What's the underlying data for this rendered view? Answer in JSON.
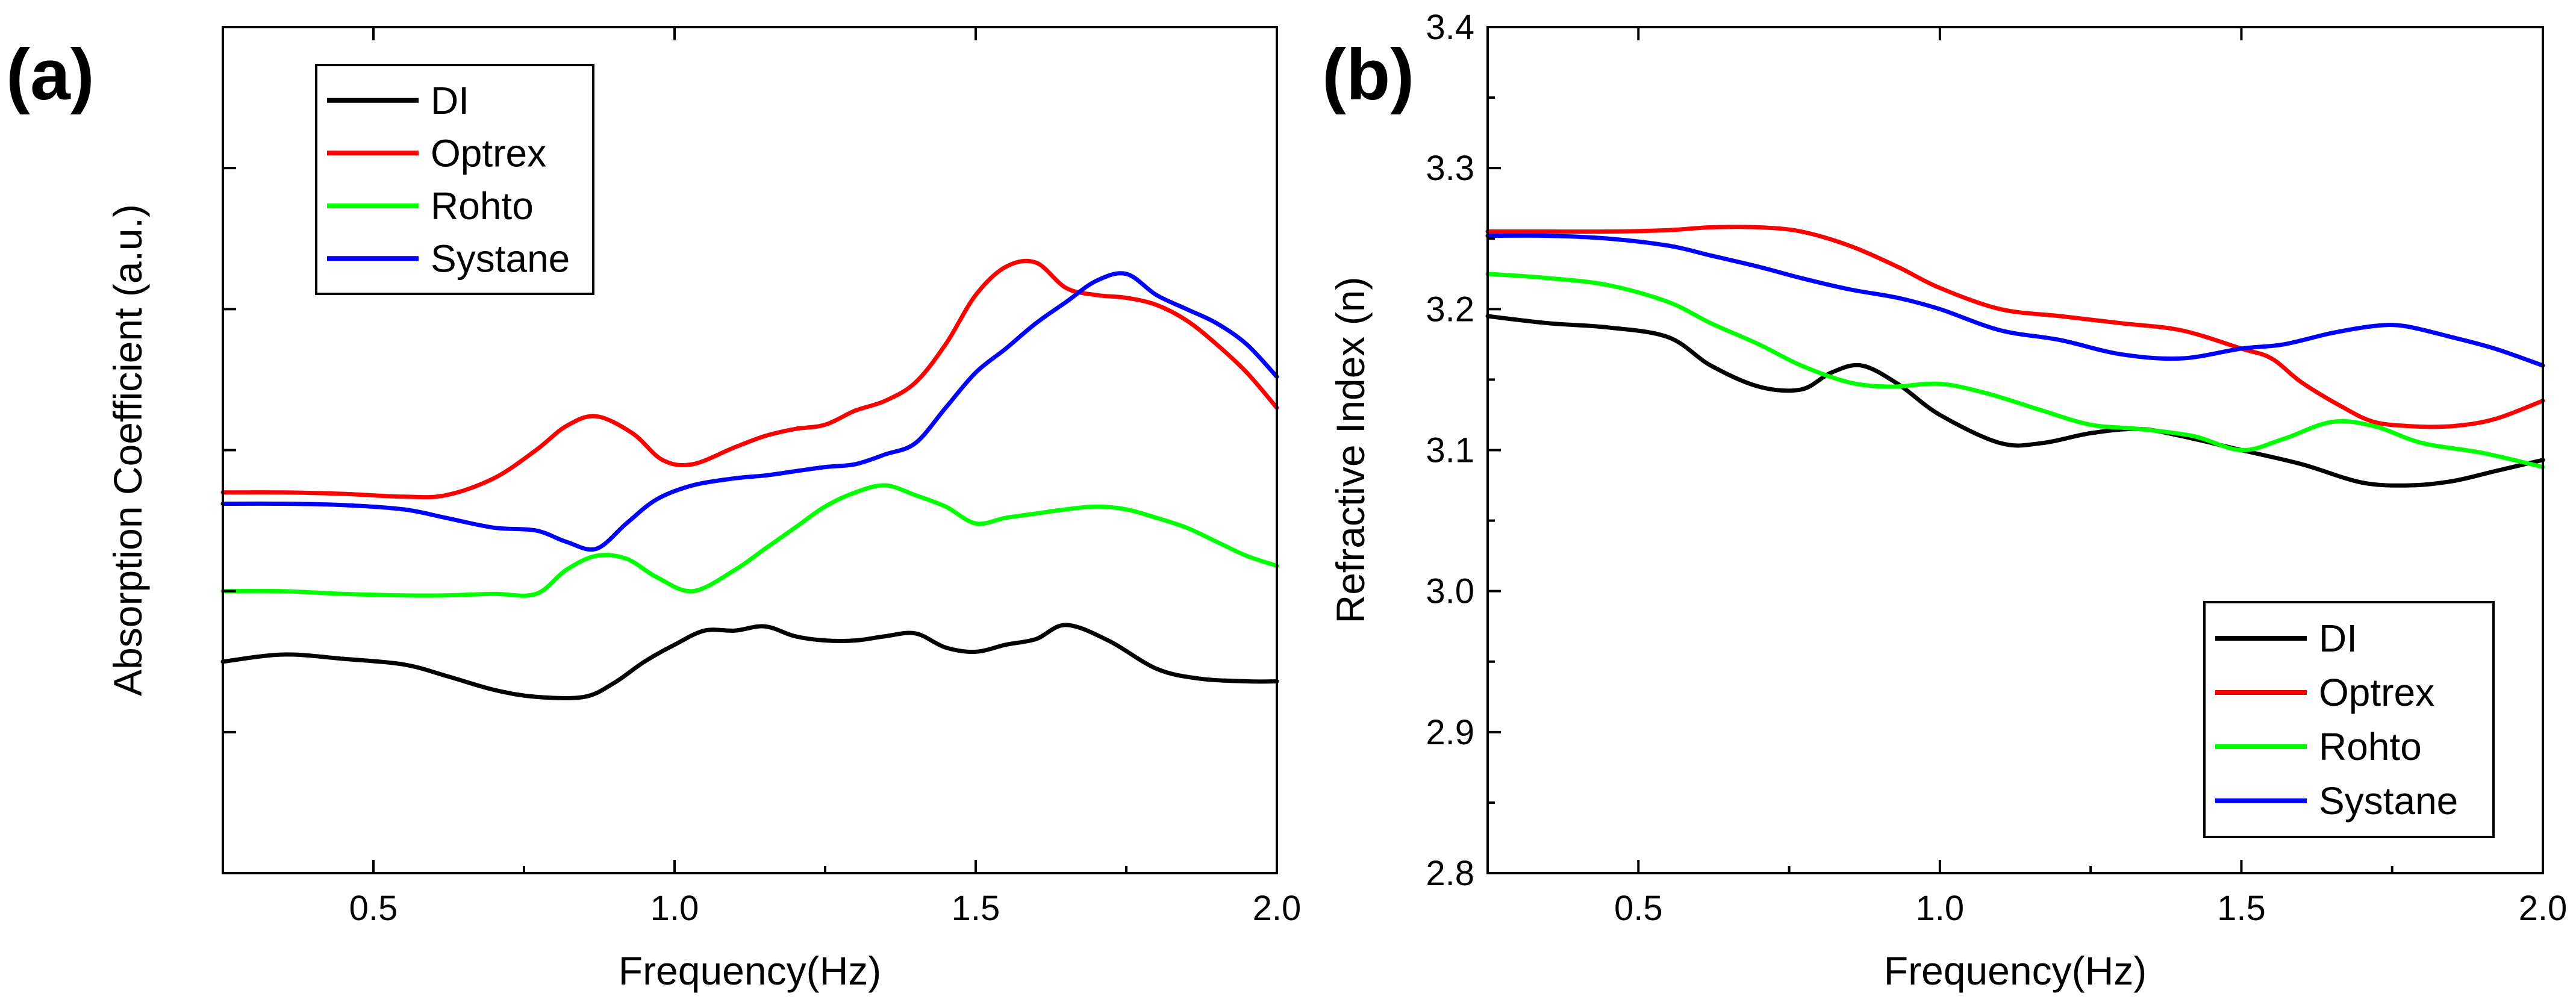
{
  "chart_data": [
    {
      "panel_label": "(a)",
      "type": "line",
      "xlabel": "Frequency(Hz)",
      "ylabel": "Absorption Coefficient (a.u.)",
      "xlim": [
        0.25,
        2.0
      ],
      "ylim": [
        0,
        6
      ],
      "xticks": [
        0.5,
        1.0,
        1.5,
        2.0
      ],
      "xtick_labels": [
        "0.5",
        "1.0",
        "1.5",
        "2.0"
      ],
      "ytick_values_unlabeled": [
        1,
        2,
        3,
        4,
        5
      ],
      "legend_position": "top-left",
      "series": [
        {
          "name": "DI",
          "color": "#000000",
          "x": [
            0.25,
            0.35,
            0.45,
            0.55,
            0.62,
            0.7,
            0.77,
            0.85,
            0.9,
            0.95,
            1.0,
            1.05,
            1.1,
            1.15,
            1.2,
            1.25,
            1.3,
            1.35,
            1.4,
            1.45,
            1.5,
            1.55,
            1.6,
            1.65,
            1.72,
            1.8,
            1.87,
            1.95,
            2.0
          ],
          "y": [
            1.5,
            1.55,
            1.52,
            1.48,
            1.4,
            1.3,
            1.25,
            1.25,
            1.35,
            1.5,
            1.62,
            1.72,
            1.72,
            1.75,
            1.68,
            1.65,
            1.65,
            1.68,
            1.7,
            1.6,
            1.57,
            1.62,
            1.66,
            1.76,
            1.65,
            1.45,
            1.38,
            1.36,
            1.36
          ]
        },
        {
          "name": "Optrex",
          "color": "#ff0000",
          "x": [
            0.25,
            0.35,
            0.45,
            0.55,
            0.62,
            0.7,
            0.77,
            0.82,
            0.87,
            0.93,
            0.98,
            1.03,
            1.1,
            1.15,
            1.2,
            1.25,
            1.3,
            1.35,
            1.4,
            1.45,
            1.5,
            1.55,
            1.6,
            1.65,
            1.7,
            1.75,
            1.8,
            1.85,
            1.9,
            1.95,
            2.0
          ],
          "y": [
            2.7,
            2.7,
            2.69,
            2.67,
            2.68,
            2.8,
            3.0,
            3.17,
            3.24,
            3.12,
            2.93,
            2.9,
            3.02,
            3.1,
            3.15,
            3.18,
            3.28,
            3.35,
            3.48,
            3.75,
            4.1,
            4.3,
            4.33,
            4.15,
            4.1,
            4.08,
            4.03,
            3.92,
            3.75,
            3.55,
            3.3
          ]
        },
        {
          "name": "Rohto",
          "color": "#00ff00",
          "x": [
            0.25,
            0.35,
            0.45,
            0.55,
            0.62,
            0.7,
            0.77,
            0.82,
            0.87,
            0.92,
            0.97,
            1.03,
            1.1,
            1.15,
            1.2,
            1.25,
            1.3,
            1.35,
            1.4,
            1.45,
            1.5,
            1.55,
            1.6,
            1.65,
            1.7,
            1.75,
            1.8,
            1.85,
            1.9,
            1.95,
            2.0
          ],
          "y": [
            2.0,
            2.0,
            1.98,
            1.97,
            1.97,
            1.98,
            1.98,
            2.15,
            2.25,
            2.23,
            2.1,
            2.0,
            2.15,
            2.3,
            2.45,
            2.6,
            2.7,
            2.75,
            2.68,
            2.6,
            2.48,
            2.52,
            2.55,
            2.58,
            2.6,
            2.58,
            2.52,
            2.45,
            2.35,
            2.25,
            2.18
          ]
        },
        {
          "name": "Systane",
          "color": "#0000ff",
          "x": [
            0.25,
            0.35,
            0.45,
            0.55,
            0.62,
            0.7,
            0.77,
            0.82,
            0.87,
            0.92,
            0.97,
            1.03,
            1.1,
            1.15,
            1.2,
            1.25,
            1.3,
            1.35,
            1.4,
            1.45,
            1.5,
            1.55,
            1.6,
            1.65,
            1.7,
            1.75,
            1.8,
            1.85,
            1.9,
            1.95,
            2.0
          ],
          "y": [
            2.62,
            2.62,
            2.61,
            2.58,
            2.52,
            2.45,
            2.43,
            2.35,
            2.3,
            2.48,
            2.65,
            2.75,
            2.8,
            2.82,
            2.85,
            2.88,
            2.9,
            2.97,
            3.05,
            3.3,
            3.55,
            3.72,
            3.9,
            4.05,
            4.2,
            4.25,
            4.1,
            4.0,
            3.9,
            3.75,
            3.52
          ]
        }
      ]
    },
    {
      "panel_label": "(b)",
      "type": "line",
      "xlabel": "Frequency(Hz)",
      "ylabel": "Refractive Index (n)",
      "xlim": [
        0.25,
        2.0
      ],
      "ylim": [
        2.8,
        3.4
      ],
      "xticks": [
        0.5,
        1.0,
        1.5,
        2.0
      ],
      "xtick_labels": [
        "0.5",
        "1.0",
        "1.5",
        "2.0"
      ],
      "yticks": [
        2.8,
        2.9,
        3.0,
        3.1,
        3.2,
        3.3,
        3.4
      ],
      "ytick_labels": [
        "2.8",
        "2.9",
        "3.0",
        "3.1",
        "3.2",
        "3.3",
        "3.4"
      ],
      "legend_position": "bottom-right",
      "series": [
        {
          "name": "DI",
          "color": "#000000",
          "x": [
            0.25,
            0.35,
            0.45,
            0.55,
            0.62,
            0.7,
            0.77,
            0.82,
            0.87,
            0.93,
            1.0,
            1.1,
            1.17,
            1.25,
            1.33,
            1.4,
            1.5,
            1.6,
            1.7,
            1.78,
            1.85,
            1.92,
            2.0
          ],
          "y": [
            3.195,
            3.19,
            3.187,
            3.18,
            3.16,
            3.145,
            3.143,
            3.155,
            3.16,
            3.147,
            3.125,
            3.105,
            3.105,
            3.112,
            3.115,
            3.11,
            3.1,
            3.09,
            3.077,
            3.075,
            3.078,
            3.085,
            3.093
          ]
        },
        {
          "name": "Optrex",
          "color": "#ff0000",
          "x": [
            0.25,
            0.35,
            0.45,
            0.55,
            0.62,
            0.7,
            0.77,
            0.85,
            0.93,
            1.0,
            1.1,
            1.2,
            1.3,
            1.4,
            1.5,
            1.55,
            1.6,
            1.67,
            1.72,
            1.78,
            1.85,
            1.92,
            2.0
          ],
          "y": [
            3.255,
            3.255,
            3.255,
            3.256,
            3.258,
            3.258,
            3.255,
            3.245,
            3.23,
            3.215,
            3.2,
            3.195,
            3.19,
            3.185,
            3.172,
            3.165,
            3.148,
            3.13,
            3.12,
            3.117,
            3.117,
            3.122,
            3.135
          ]
        },
        {
          "name": "Rohto",
          "color": "#00ff00",
          "x": [
            0.25,
            0.35,
            0.45,
            0.55,
            0.62,
            0.7,
            0.77,
            0.85,
            0.92,
            1.0,
            1.08,
            1.17,
            1.25,
            1.33,
            1.42,
            1.5,
            1.57,
            1.65,
            1.72,
            1.8,
            1.9,
            2.0
          ],
          "y": [
            3.225,
            3.222,
            3.217,
            3.205,
            3.19,
            3.175,
            3.16,
            3.148,
            3.145,
            3.147,
            3.14,
            3.128,
            3.118,
            3.115,
            3.11,
            3.1,
            3.108,
            3.12,
            3.117,
            3.105,
            3.098,
            3.088
          ]
        },
        {
          "name": "Systane",
          "color": "#0000ff",
          "x": [
            0.25,
            0.35,
            0.45,
            0.55,
            0.62,
            0.7,
            0.77,
            0.85,
            0.93,
            1.0,
            1.1,
            1.2,
            1.3,
            1.4,
            1.5,
            1.57,
            1.65,
            1.72,
            1.77,
            1.85,
            1.92,
            2.0
          ],
          "y": [
            3.252,
            3.252,
            3.25,
            3.245,
            3.238,
            3.23,
            3.222,
            3.214,
            3.208,
            3.2,
            3.185,
            3.178,
            3.168,
            3.165,
            3.172,
            3.175,
            3.183,
            3.188,
            3.188,
            3.18,
            3.172,
            3.16
          ]
        }
      ]
    }
  ]
}
